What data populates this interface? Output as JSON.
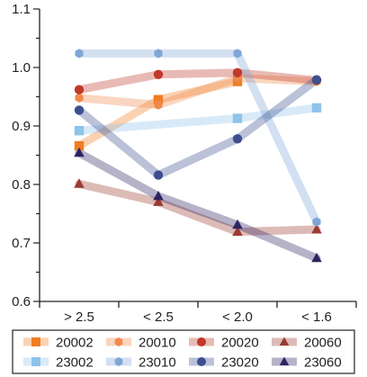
{
  "chart_data": {
    "type": "line",
    "categories": [
      "> 2.5",
      "< 2.5",
      "< 2.0",
      "< 1.6"
    ],
    "ylim": [
      0.6,
      1.1
    ],
    "yticks": [
      "0.6",
      "0.7",
      "0.8",
      "0.9",
      "1.0",
      "1.1"
    ],
    "grid": false,
    "legend_position": "bottom",
    "series": [
      {
        "name": "20002",
        "color": "#f07d22",
        "marker": "square",
        "values": [
          0.866,
          0.945,
          0.976,
          null
        ]
      },
      {
        "name": "20010",
        "color": "#f08a4b",
        "marker": "hexagon",
        "values": [
          0.948,
          0.936,
          0.982,
          0.976
        ]
      },
      {
        "name": "20020",
        "color": "#c0392b",
        "marker": "circle",
        "values": [
          0.962,
          0.988,
          0.991,
          0.978
        ]
      },
      {
        "name": "20060",
        "color": "#9b3b32",
        "marker": "triangle",
        "values": [
          0.801,
          0.77,
          0.719,
          0.723
        ]
      },
      {
        "name": "23002",
        "color": "#8ec3ea",
        "marker": "square",
        "values": [
          0.892,
          null,
          0.913,
          0.931
        ]
      },
      {
        "name": "23010",
        "color": "#7fa6d6",
        "marker": "hexagon",
        "values": [
          1.024,
          1.024,
          1.024,
          0.736
        ]
      },
      {
        "name": "23020",
        "color": "#3d4f8f",
        "marker": "circle",
        "values": [
          0.927,
          0.816,
          0.878,
          0.979
        ]
      },
      {
        "name": "23060",
        "color": "#2e2560",
        "marker": "triangle",
        "values": [
          0.854,
          0.78,
          0.731,
          0.674
        ]
      }
    ]
  }
}
